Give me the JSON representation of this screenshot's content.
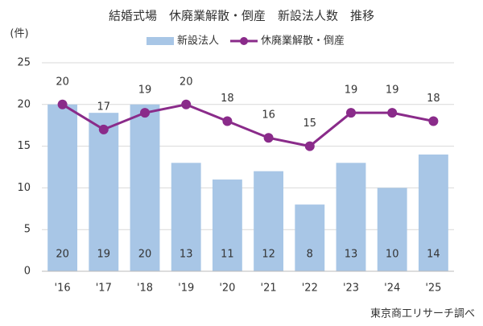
{
  "chart_data": {
    "type": "combo",
    "title": "結婚式場　休廃業解散・倒産　新設法人数　推移",
    "y_label": "(件)",
    "source": "東京商工リサーチ調べ",
    "categories": [
      "'16",
      "'17",
      "'18",
      "'19",
      "'20",
      "'21",
      "'22",
      "'23",
      "'24",
      "'25"
    ],
    "series": [
      {
        "name": "新設法人",
        "type": "bar",
        "color": "#a8c6e6",
        "values": [
          20,
          19,
          20,
          13,
          11,
          12,
          8,
          13,
          10,
          14
        ]
      },
      {
        "name": "休廃業解散・倒産",
        "type": "line",
        "color": "#8a2b8a",
        "values": [
          20,
          17,
          19,
          20,
          18,
          16,
          15,
          19,
          19,
          18
        ]
      }
    ],
    "ylim": [
      0,
      25
    ],
    "yticks": [
      0,
      5,
      10,
      15,
      20,
      25
    ],
    "grid": true,
    "legend": "top"
  }
}
